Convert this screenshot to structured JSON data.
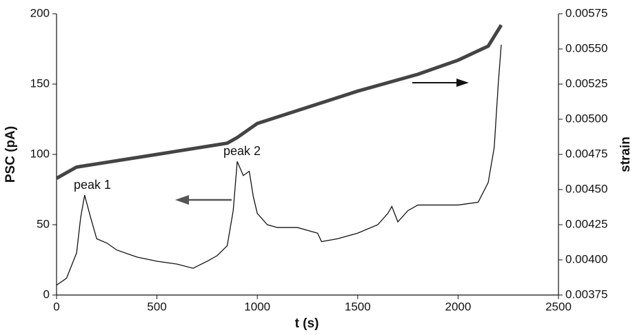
{
  "chart_data": {
    "type": "line",
    "xlabel": "t (s)",
    "ylabel": "PSC (pA)",
    "y2label": "strain",
    "xlim": [
      0,
      2500
    ],
    "xticks": [
      0,
      500,
      1000,
      1500,
      2000,
      2500
    ],
    "ylim": [
      0,
      200
    ],
    "yticks": [
      0,
      50,
      100,
      150,
      200
    ],
    "y2lim": [
      0.00375,
      0.00575
    ],
    "y2ticks": [
      0.00375,
      {
        "value": 0.004,
        "label": "0.00400"
      },
      0.00425,
      {
        "value": 0.0045,
        "label": "0.00450"
      },
      0.00475,
      {
        "value": 0.005,
        "label": "0.00500"
      },
      0.00525,
      {
        "value": 0.0055,
        "label": "0.00550"
      },
      0.00575
    ],
    "annotations": [
      "peak 1",
      "peak 2"
    ],
    "series": [
      {
        "name": "PSC",
        "color": "#111111",
        "x": [
          0,
          50,
          100,
          120,
          140,
          170,
          200,
          250,
          300,
          400,
          500,
          600,
          680,
          750,
          800,
          850,
          880,
          900,
          930,
          960,
          980,
          1000,
          1050,
          1100,
          1200,
          1300,
          1320,
          1400,
          1500,
          1600,
          1650,
          1670,
          1700,
          1750,
          1800,
          1900,
          2000,
          2100,
          2150,
          2180,
          2200,
          2215
        ],
        "values": [
          7,
          12,
          30,
          55,
          71,
          55,
          40,
          37,
          32,
          27,
          24,
          22,
          19,
          24,
          28,
          35,
          60,
          95,
          85,
          88,
          70,
          58,
          50,
          48,
          48,
          44,
          38,
          40,
          44,
          50,
          58,
          63,
          52,
          60,
          64,
          64,
          64,
          66,
          80,
          105,
          150,
          178
        ]
      },
      {
        "name": "strain",
        "color": "#444444",
        "axis": "y2",
        "x": [
          0,
          100,
          500,
          850,
          900,
          1000,
          1500,
          1800,
          2000,
          2150,
          2215
        ],
        "values": [
          0.00458,
          0.00466,
          0.00475,
          0.00483,
          0.00487,
          0.00497,
          0.0052,
          0.00532,
          0.00542,
          0.00552,
          0.00567
        ]
      }
    ]
  }
}
